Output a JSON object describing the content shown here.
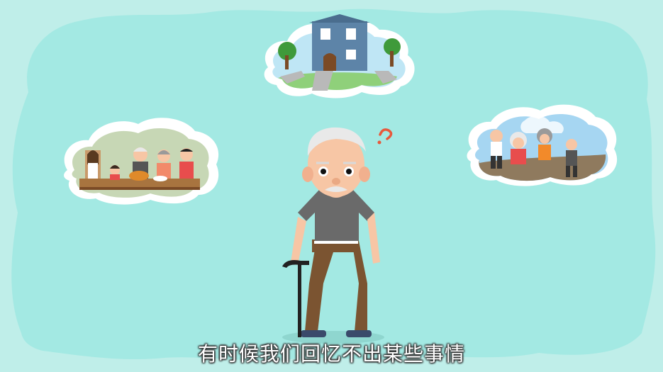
{
  "subtitle": "有时候我们回忆不出某些事情",
  "colors": {
    "background": "#bfeee9",
    "cloud": "#a3e9e3",
    "shirt": "#6a6a6a",
    "pants": "#7b5431",
    "skin": "#f7c6a5",
    "hair": "#e9e9e9",
    "question_mark": "#e8583b",
    "house": "#5d84a8"
  },
  "icons": [
    "house-memory-bubble",
    "family-dinner-memory-bubble",
    "friends-outdoor-memory-bubble",
    "question-mark-icon",
    "walking-cane"
  ]
}
